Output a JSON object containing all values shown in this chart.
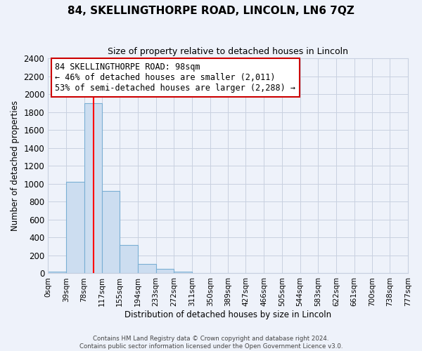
{
  "title": "84, SKELLINGTHORPE ROAD, LINCOLN, LN6 7QZ",
  "subtitle": "Size of property relative to detached houses in Lincoln",
  "xlabel": "Distribution of detached houses by size in Lincoln",
  "ylabel": "Number of detached properties",
  "bar_color": "#ccddf0",
  "bar_edge_color": "#7aafd4",
  "background_color": "#eef2fa",
  "bin_edges": [
    0,
    39,
    78,
    117,
    155,
    194,
    233,
    272,
    311,
    350,
    389,
    427,
    466,
    505,
    544,
    583,
    622,
    661,
    700,
    738,
    777
  ],
  "bin_labels": [
    "0sqm",
    "39sqm",
    "78sqm",
    "117sqm",
    "155sqm",
    "194sqm",
    "233sqm",
    "272sqm",
    "311sqm",
    "350sqm",
    "389sqm",
    "427sqm",
    "466sqm",
    "505sqm",
    "544sqm",
    "583sqm",
    "622sqm",
    "661sqm",
    "700sqm",
    "738sqm",
    "777sqm"
  ],
  "bar_heights": [
    20,
    1020,
    1900,
    920,
    320,
    105,
    50,
    20,
    5,
    0,
    0,
    0,
    0,
    0,
    0,
    0,
    0,
    0,
    0,
    0
  ],
  "ylim": [
    0,
    2400
  ],
  "yticks": [
    0,
    200,
    400,
    600,
    800,
    1000,
    1200,
    1400,
    1600,
    1800,
    2000,
    2200,
    2400
  ],
  "red_line_x": 98,
  "annotation_title": "84 SKELLINGTHORPE ROAD: 98sqm",
  "annotation_line1": "← 46% of detached houses are smaller (2,011)",
  "annotation_line2": "53% of semi-detached houses are larger (2,288) →",
  "annotation_box_color": "#ffffff",
  "annotation_box_edge": "#cc0000",
  "footer_line1": "Contains HM Land Registry data © Crown copyright and database right 2024.",
  "footer_line2": "Contains public sector information licensed under the Open Government Licence v3.0."
}
